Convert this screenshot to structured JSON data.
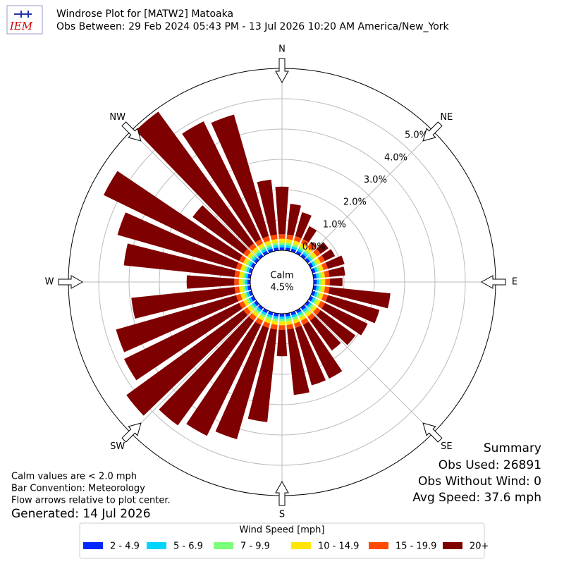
{
  "chart_data": {
    "type": "windrose",
    "title": "Windrose Plot for [MATW2] Matoaka",
    "subtitle": "Obs Between: 29 Feb 2024 05:43 PM - 13 Jul 2026 10:20 AM America/New_York",
    "logo_text": "IEM",
    "compass_labels": [
      "N",
      "NE",
      "E",
      "SE",
      "S",
      "SW",
      "W",
      "NW"
    ],
    "calm": {
      "label": "Calm",
      "value": 4.5,
      "value_label": "4.5%"
    },
    "ylim": [
      0,
      6
    ],
    "yticks": [
      {
        "value": 0,
        "label": "0.0%"
      },
      {
        "value": 1,
        "label": "1.0%"
      },
      {
        "value": 2,
        "label": "2.0%"
      },
      {
        "value": 3,
        "label": "3.0%"
      },
      {
        "value": 4,
        "label": "4.0%"
      },
      {
        "value": 5,
        "label": "5.0%"
      }
    ],
    "grid": true,
    "legend_title": "Wind Speed [mph]",
    "series": [
      {
        "name": "2 - 4.9",
        "color": "#0028ff",
        "values": [
          0.1,
          0.1,
          0.1,
          0.1,
          0.1,
          0.1,
          0.1,
          0.1,
          0.1,
          0.1,
          0.1,
          0.1,
          0.1,
          0.1,
          0.1,
          0.1,
          0.1,
          0.1,
          0.1,
          0.1,
          0.1,
          0.1,
          0.1,
          0.1,
          0.1,
          0.1,
          0.1,
          0.1,
          0.1,
          0.1,
          0.1,
          0.1,
          0.1,
          0.1,
          0.1,
          0.1
        ]
      },
      {
        "name": "5 - 6.9",
        "color": "#00d4ff",
        "values": [
          0.08,
          0.08,
          0.08,
          0.08,
          0.08,
          0.08,
          0.08,
          0.08,
          0.08,
          0.08,
          0.08,
          0.08,
          0.08,
          0.08,
          0.08,
          0.08,
          0.08,
          0.08,
          0.08,
          0.08,
          0.08,
          0.08,
          0.08,
          0.08,
          0.08,
          0.08,
          0.08,
          0.08,
          0.08,
          0.08,
          0.08,
          0.08,
          0.08,
          0.08,
          0.08,
          0.08
        ]
      },
      {
        "name": "7 - 9.9",
        "color": "#7cff79",
        "values": [
          0.08,
          0.08,
          0.08,
          0.08,
          0.08,
          0.08,
          0.08,
          0.08,
          0.08,
          0.08,
          0.08,
          0.08,
          0.08,
          0.08,
          0.08,
          0.08,
          0.08,
          0.08,
          0.08,
          0.08,
          0.08,
          0.08,
          0.08,
          0.08,
          0.08,
          0.08,
          0.08,
          0.08,
          0.08,
          0.08,
          0.08,
          0.08,
          0.08,
          0.08,
          0.08,
          0.08
        ]
      },
      {
        "name": "10 - 14.9",
        "color": "#ffe600",
        "values": [
          0.12,
          0.12,
          0.12,
          0.12,
          0.12,
          0.12,
          0.12,
          0.12,
          0.12,
          0.12,
          0.12,
          0.12,
          0.12,
          0.12,
          0.12,
          0.12,
          0.12,
          0.12,
          0.12,
          0.12,
          0.12,
          0.12,
          0.12,
          0.12,
          0.12,
          0.12,
          0.12,
          0.12,
          0.12,
          0.12,
          0.12,
          0.12,
          0.12,
          0.12,
          0.12,
          0.12
        ]
      },
      {
        "name": "15 - 19.9",
        "color": "#ff4a00",
        "values": [
          0.15,
          0.15,
          0.15,
          0.15,
          0.15,
          0.15,
          0.15,
          0.15,
          0.15,
          0.15,
          0.15,
          0.15,
          0.15,
          0.15,
          0.15,
          0.15,
          0.15,
          0.15,
          0.15,
          0.15,
          0.15,
          0.15,
          0.15,
          0.15,
          0.15,
          0.15,
          0.15,
          0.15,
          0.15,
          0.15,
          0.15,
          0.15,
          0.15,
          0.15,
          0.15,
          0.15
        ]
      },
      {
        "name": "20+",
        "color": "#7f0000",
        "values": [
          1.57,
          1.02,
          0.82,
          0.47,
          0.07,
          0.32,
          0.37,
          0.57,
          0.52,
          0.42,
          2.02,
          1.77,
          1.57,
          1.42,
          1.22,
          1.97,
          1.97,
          2.17,
          0.87,
          3.07,
          3.82,
          4.07,
          4.27,
          4.77,
          4.22,
          4.12,
          3.42,
          1.57,
          3.67,
          4.07,
          4.97,
          2.07,
          5.37,
          4.32,
          4.17,
          1.82
        ]
      }
    ],
    "notes": [
      "Calm values are < 2.0 mph",
      "Bar Convention: Meteorology",
      "Flow arrows relative to plot center."
    ],
    "generated": "Generated: 14 Jul 2026",
    "summary": [
      "Summary",
      "Obs Used: 26891",
      "Obs Without Wind: 0",
      "Avg Speed: 37.6 mph"
    ]
  }
}
